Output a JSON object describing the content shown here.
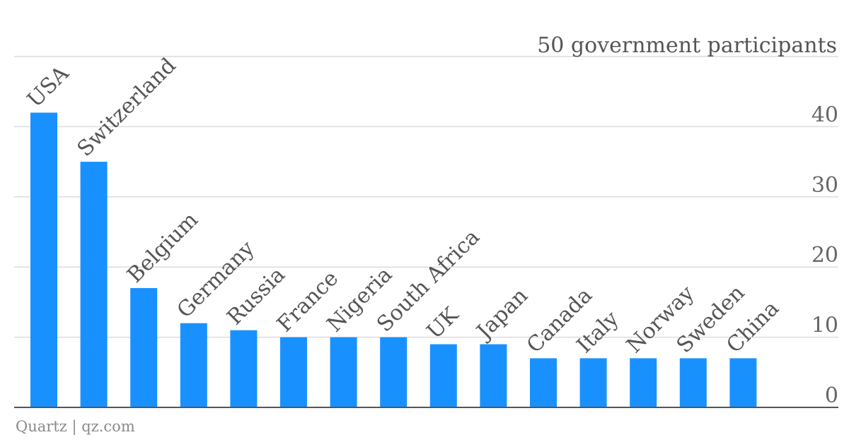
{
  "chart_data": {
    "type": "bar",
    "categories": [
      "USA",
      "Switzerland",
      "Belgium",
      "Germany",
      "Russia",
      "France",
      "Nigeria",
      "South Africa",
      "UK",
      "Japan",
      "Canada",
      "Italy",
      "Norway",
      "Sweden",
      "China"
    ],
    "values": [
      42,
      35,
      17,
      12,
      11,
      10,
      10,
      10,
      9,
      9,
      7,
      7,
      7,
      7,
      7
    ],
    "y_ticks": [
      0,
      10,
      20,
      30,
      40,
      50
    ],
    "ylim": [
      0,
      50
    ],
    "y_unit_label": "50 government participants",
    "bar_color": "#1891ff",
    "grid": true,
    "y_axis_position": "right"
  },
  "footer": {
    "source": "Quartz | qz.com"
  }
}
